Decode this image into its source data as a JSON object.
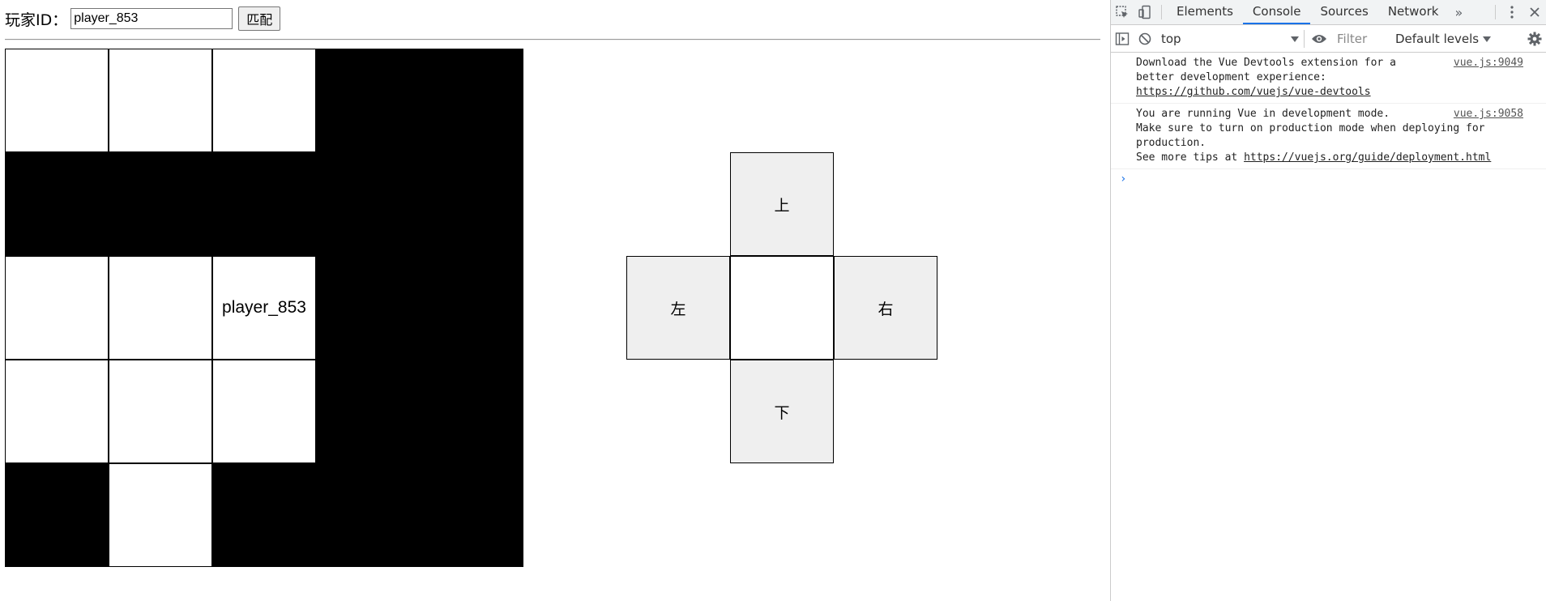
{
  "page": {
    "player_id_label": "玩家ID：",
    "player_id_value": "player_853",
    "match_button_label": "匹配"
  },
  "grid": {
    "rows": [
      [
        {
          "type": "open",
          "label": ""
        },
        {
          "type": "open",
          "label": ""
        },
        {
          "type": "open",
          "label": ""
        },
        {
          "type": "wall",
          "label": ""
        },
        {
          "type": "wall",
          "label": ""
        }
      ],
      [
        {
          "type": "wall",
          "label": ""
        },
        {
          "type": "wall",
          "label": ""
        },
        {
          "type": "wall",
          "label": ""
        },
        {
          "type": "wall",
          "label": ""
        },
        {
          "type": "wall",
          "label": ""
        }
      ],
      [
        {
          "type": "open",
          "label": ""
        },
        {
          "type": "open",
          "label": ""
        },
        {
          "type": "open",
          "label": "player_853"
        },
        {
          "type": "wall",
          "label": ""
        },
        {
          "type": "wall",
          "label": ""
        }
      ],
      [
        {
          "type": "open",
          "label": ""
        },
        {
          "type": "open",
          "label": ""
        },
        {
          "type": "open",
          "label": ""
        },
        {
          "type": "wall",
          "label": ""
        },
        {
          "type": "wall",
          "label": ""
        }
      ],
      [
        {
          "type": "wall",
          "label": ""
        },
        {
          "type": "open",
          "label": ""
        },
        {
          "type": "wall",
          "label": ""
        },
        {
          "type": "wall",
          "label": ""
        },
        {
          "type": "wall",
          "label": ""
        }
      ]
    ]
  },
  "dpad": {
    "up": "上",
    "left": "左",
    "right": "右",
    "down": "下"
  },
  "devtools": {
    "tabs": [
      "Elements",
      "Console",
      "Sources",
      "Network"
    ],
    "active_tab": "Console",
    "more_tabs": "»",
    "context": "top",
    "filter_placeholder": "Filter",
    "levels": "Default levels",
    "logs": [
      {
        "text": "Download the Vue Devtools extension for a\nbetter development experience:",
        "link": "https://github.com/vuejs/vue-devtools",
        "source": "vue.js:9049"
      },
      {
        "text": "You are running Vue in development mode.\nMake sure to turn on production mode when deploying for\nproduction.\nSee more tips at ",
        "link": "https://vuejs.org/guide/deployment.html",
        "source": "vue.js:9058"
      }
    ],
    "prompt": "›"
  }
}
